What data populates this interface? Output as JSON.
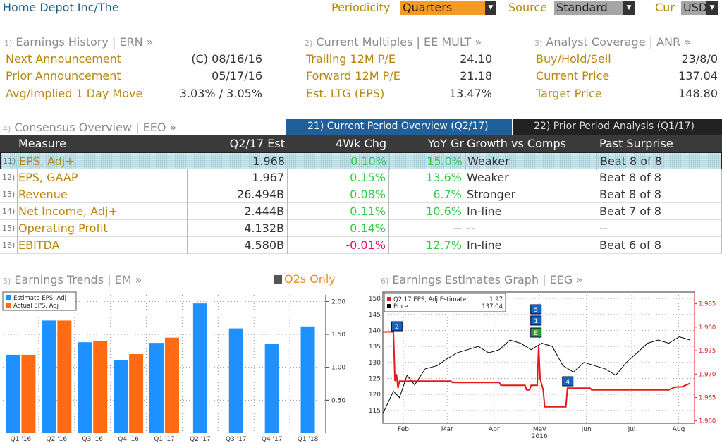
{
  "topbar": {
    "company": "Home Depot Inc/The",
    "periodicity_label": "Periodicity",
    "periodicity_value": "Quarters",
    "source_label": "Source",
    "source_value": "Standard",
    "currency_label": "Cur",
    "currency_value": "USD"
  },
  "erh": {
    "num": "1)",
    "title": "Earnings History | ERN »",
    "next_label": "Next Announcement",
    "next_value": "(C)  08/16/16",
    "prior_label": "Prior Announcement",
    "prior_value": "05/17/16",
    "move_label": "Avg/Implied 1 Day Move",
    "move_value": "3.03% / 3.05%"
  },
  "mult": {
    "num": "2)",
    "title": "Current Multiples | EE MULT »",
    "trailing_label": "Trailing 12M P/E",
    "trailing_value": "24.10",
    "forward_label": "Forward 12M P/E",
    "forward_value": "21.18",
    "ltg_label": "Est. LTG (EPS)",
    "ltg_value": "13.47%"
  },
  "anr": {
    "num": "3)",
    "title": "Analyst Coverage | ANR »",
    "bhs_label": "Buy/Hold/Sell",
    "bhs_value": "23/8/0",
    "price_label": "Current Price",
    "price_value": "137.04",
    "target_label": "Target Price",
    "target_value": "148.80"
  },
  "consensus": {
    "num": "4)",
    "title": "Consensus Overview | EEO »",
    "tab_current": "21) Current Period Overview (Q2/17)",
    "tab_prior": "22) Prior Period Analysis (Q1/17)",
    "headers": [
      "Measure",
      "Q2/17 Est",
      "4Wk Chg",
      "YoY Gr",
      "Growth vs Comps",
      "Past Surprise"
    ],
    "rows": [
      {
        "idx": "11)",
        "measure": "EPS, Adj+",
        "est": "1.968",
        "chg": "0.10%",
        "yoy": "15.0%",
        "comps": "Weaker",
        "surprise": "Beat 8 of 8"
      },
      {
        "idx": "12)",
        "measure": "EPS, GAAP",
        "est": "1.967",
        "chg": "0.15%",
        "yoy": "13.6%",
        "comps": "Weaker",
        "surprise": "Beat 8 of 8"
      },
      {
        "idx": "13)",
        "measure": "Revenue",
        "est": "26.494B",
        "chg": "0.08%",
        "yoy": "6.7%",
        "comps": "Stronger",
        "surprise": "Beat 8 of 8"
      },
      {
        "idx": "14)",
        "measure": "Net Income, Adj+",
        "est": "2.444B",
        "chg": "0.11%",
        "yoy": "10.6%",
        "comps": "In-line",
        "surprise": "Beat 7 of 8"
      },
      {
        "idx": "15)",
        "measure": "Operating Profit",
        "est": "4.132B",
        "chg": "0.14%",
        "yoy": "--",
        "comps": "--",
        "surprise": "--"
      },
      {
        "idx": "16)",
        "measure": "EBITDA",
        "est": "4.580B",
        "chg": "-0.01%",
        "yoy": "12.7%",
        "comps": "In-line",
        "surprise": "Beat 6 of 8"
      }
    ]
  },
  "trends": {
    "num": "5)",
    "title": "Earnings Trends | EM »",
    "q2_only": "Q2s Only"
  },
  "eeg": {
    "num": "6)",
    "title": "Earnings Estimates Graph | EEG »"
  },
  "colors": {
    "estimate": "#1e90ff",
    "actual": "#ff6a13",
    "price": "#000000",
    "estimate_line": "#e31a1c",
    "tab_active": "#1f5f9b",
    "header_bg": "#3a3a3a"
  },
  "chart_data": [
    {
      "type": "bar",
      "categories": [
        "Q1 '16",
        "Q2 '16",
        "Q3 '16",
        "Q4 '16",
        "Q1 '17",
        "Q2 '17",
        "Q3 '17",
        "Q4 '17",
        "Q1 '18"
      ],
      "series": [
        {
          "name": "Estimate EPS, Adj",
          "values": [
            1.19,
            1.71,
            1.38,
            1.11,
            1.37,
            1.97,
            1.59,
            1.36,
            1.62
          ]
        },
        {
          "name": "Actual EPS, Adj",
          "values": [
            1.19,
            1.71,
            1.4,
            1.2,
            1.45,
            null,
            null,
            null,
            null
          ]
        }
      ],
      "y_ticks": [
        "0.50",
        "1.00",
        "1.50",
        "2.00"
      ],
      "ylim": [
        0,
        2.1
      ],
      "legend": "top-left",
      "grid": true
    },
    {
      "type": "line",
      "x_ticks": [
        "Feb",
        "Mar",
        "Apr",
        "May",
        "Jun",
        "Jul",
        "Aug"
      ],
      "x_year_label": "2016",
      "left_axis_ticks": [
        "115",
        "120",
        "125",
        "130",
        "135",
        "140",
        "145",
        "150"
      ],
      "right_axis_ticks": [
        "1.960",
        "1.965",
        "1.970",
        "1.975",
        "1.980",
        "1.985"
      ],
      "left_ylim": [
        111,
        152
      ],
      "right_ylim": [
        1.9595,
        1.9875
      ],
      "legend_entries": [
        {
          "name": "Q2 17 EPS, Adj Estimate",
          "value": "1.97"
        },
        {
          "name": "Price",
          "value": "137.04"
        }
      ],
      "event_markers": [
        "2",
        "5",
        "1",
        "E",
        "4"
      ],
      "series": [
        {
          "name": "Q2 17 EPS, Adj Estimate",
          "axis": "right",
          "x": [
            "2016-01-25",
            "2016-02-01",
            "2016-02-02",
            "2016-02-03",
            "2016-02-04",
            "2016-02-05",
            "2016-03-10",
            "2016-03-11",
            "2016-04-11",
            "2016-04-12",
            "2016-04-28",
            "2016-04-29",
            "2016-05-01",
            "2016-05-02",
            "2016-05-06",
            "2016-05-07",
            "2016-05-08",
            "2016-05-10",
            "2016-05-11",
            "2016-05-25",
            "2016-05-26",
            "2016-06-10",
            "2016-06-11",
            "2016-08-01",
            "2016-08-05",
            "2016-08-10",
            "2016-08-15"
          ],
          "values": [
            1.979,
            1.979,
            1.9685,
            1.97,
            1.967,
            1.9685,
            1.9685,
            1.9682,
            1.9682,
            1.9676,
            1.9676,
            1.9666,
            1.9666,
            1.9676,
            1.9676,
            1.976,
            1.969,
            1.9666,
            1.963,
            1.963,
            1.967,
            1.967,
            1.9666,
            1.9666,
            1.9672,
            1.9673,
            1.968
          ]
        },
        {
          "name": "Price",
          "axis": "left",
          "x": [
            "2016-01-25",
            "2016-02-01",
            "2016-02-05",
            "2016-02-10",
            "2016-02-15",
            "2016-02-22",
            "2016-03-01",
            "2016-03-07",
            "2016-03-14",
            "2016-03-21",
            "2016-03-28",
            "2016-04-04",
            "2016-04-11",
            "2016-04-18",
            "2016-04-25",
            "2016-05-02",
            "2016-05-09",
            "2016-05-16",
            "2016-05-23",
            "2016-05-30",
            "2016-06-06",
            "2016-06-13",
            "2016-06-20",
            "2016-06-27",
            "2016-07-04",
            "2016-07-11",
            "2016-07-18",
            "2016-07-25",
            "2016-08-01",
            "2016-08-08",
            "2016-08-15"
          ],
          "values": [
            114,
            121,
            119,
            126,
            123,
            128,
            129,
            131,
            133,
            134,
            135,
            133,
            134,
            137,
            136,
            134,
            136,
            135,
            129,
            127,
            130,
            129,
            128,
            126,
            130,
            133,
            136,
            137,
            136,
            138,
            137
          ]
        }
      ]
    }
  ]
}
